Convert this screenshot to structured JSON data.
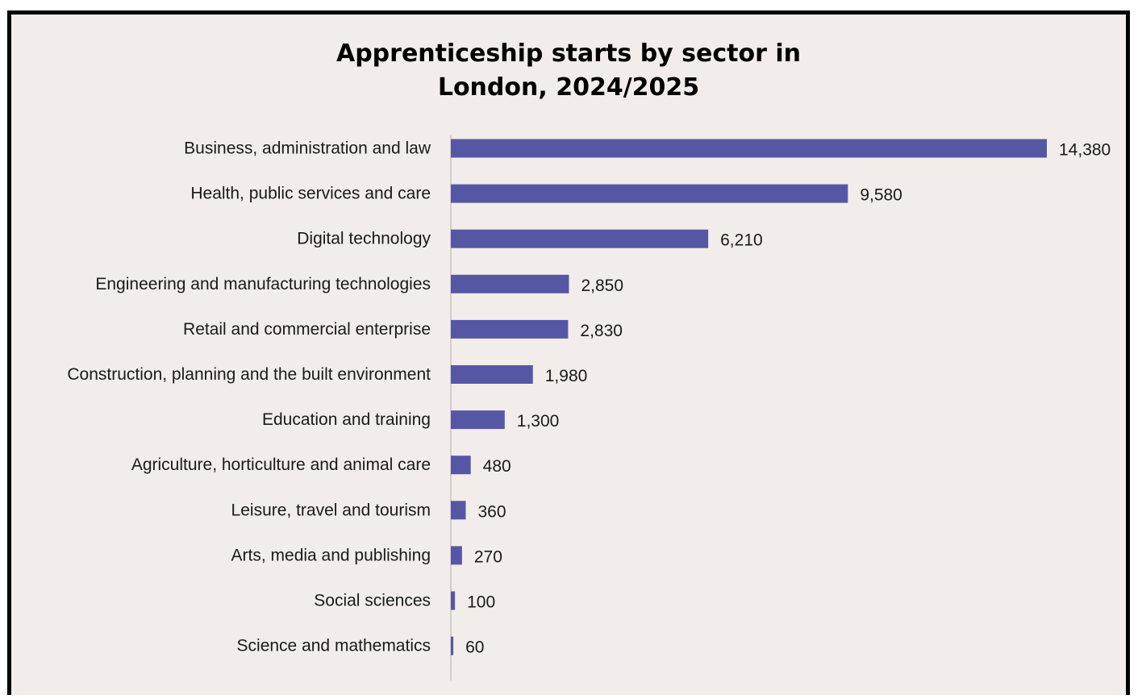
{
  "chart_data": {
    "type": "bar",
    "orientation": "horizontal",
    "title": "Apprenticeship starts by sector in London, 2024/2025",
    "title_lines": [
      "Apprenticeship starts by sector in",
      "London, 2024/2025"
    ],
    "categories": [
      "Business, administration and law",
      "Health, public services and care",
      "Digital technology",
      "Engineering and manufacturing technologies",
      "Retail and commercial enterprise",
      "Construction, planning and the built environment",
      "Education and training",
      "Agriculture, horticulture and animal care",
      "Leisure, travel and tourism",
      "Arts, media and publishing",
      "Social sciences",
      "Science and mathematics"
    ],
    "values": [
      14380,
      9580,
      6210,
      2850,
      2830,
      1980,
      1300,
      480,
      360,
      270,
      100,
      60
    ],
    "value_labels": [
      "14,380",
      "9,580",
      "6,210",
      "2,850",
      "2,830",
      "1,980",
      "1,300",
      "480",
      "360",
      "270",
      "100",
      "60"
    ],
    "xlim": [
      0,
      14380
    ],
    "grid": false,
    "legend": "none",
    "bar_color": "#5657a4",
    "axis_color": "#c8c4c0",
    "background_color": "#f2edea"
  }
}
